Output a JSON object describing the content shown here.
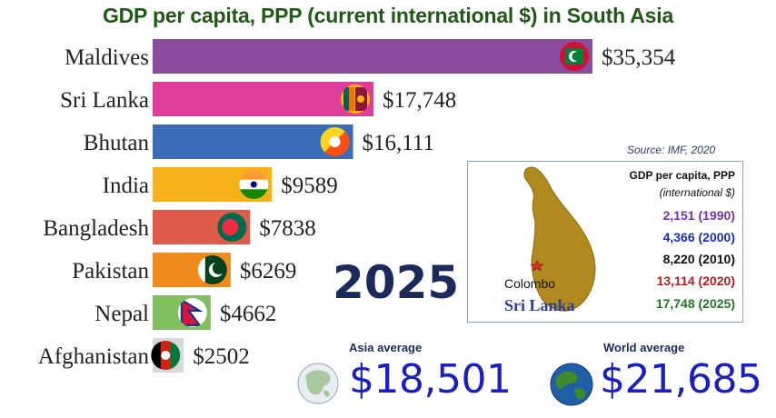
{
  "colors": {
    "title": "#1f5a14",
    "year": "#1b2a5c",
    "average_value": "#1a1fc2",
    "map_fill": "#b08a1e"
  },
  "chart_data": {
    "type": "bar",
    "orientation": "horizontal",
    "title": "GDP per capita, PPP (current international $) in South Asia",
    "categories": [
      "Maldives",
      "Sri Lanka",
      "Bhutan",
      "India",
      "Bangladesh",
      "Pakistan",
      "Nepal",
      "Afghanistan"
    ],
    "values": [
      35354,
      17748,
      16111,
      9589,
      7838,
      6269,
      4662,
      2502
    ],
    "value_labels": [
      "$35,354",
      "$17,748",
      "$16,111",
      "$9589",
      "$7838",
      "$6269",
      "$4662",
      "$2502"
    ],
    "bar_colors": [
      "#8b4b9e",
      "#e03c9b",
      "#3b6cb7",
      "#f7b21a",
      "#de5a4a",
      "#f08a1c",
      "#7fbf5e",
      "#d8d8d8"
    ],
    "flag_icons": [
      "maldives-flag-icon",
      "sri-lanka-flag-icon",
      "bhutan-flag-icon",
      "india-flag-icon",
      "bangladesh-flag-icon",
      "pakistan-flag-icon",
      "nepal-flag-icon",
      "afghanistan-flag-icon"
    ],
    "xlim": [
      0,
      35354
    ],
    "grid": false,
    "legend": "none"
  },
  "year": "2025",
  "source": "Source: IMF, 2020",
  "inset": {
    "title": "GDP per capita, PPP",
    "subtitle": "(international $)",
    "city": "Colombo",
    "country": "Sri Lanka",
    "map_icon": "sri-lanka-map-icon",
    "history": [
      {
        "text": "2,151 (1990)",
        "color": "#7b2fa8"
      },
      {
        "text": "4,366 (2000)",
        "color": "#1a2fb0"
      },
      {
        "text": "8,220 (2010)",
        "color": "#111111"
      },
      {
        "text": "13,114 (2020)",
        "color": "#b02020"
      },
      {
        "text": "17,748 (2025)",
        "color": "#1e7a1e"
      }
    ]
  },
  "averages": {
    "asia": {
      "label": "Asia average",
      "value": "$18,501",
      "icon": "asia-globe-icon"
    },
    "world": {
      "label": "World average",
      "value": "$21,685",
      "icon": "world-globe-icon"
    }
  }
}
